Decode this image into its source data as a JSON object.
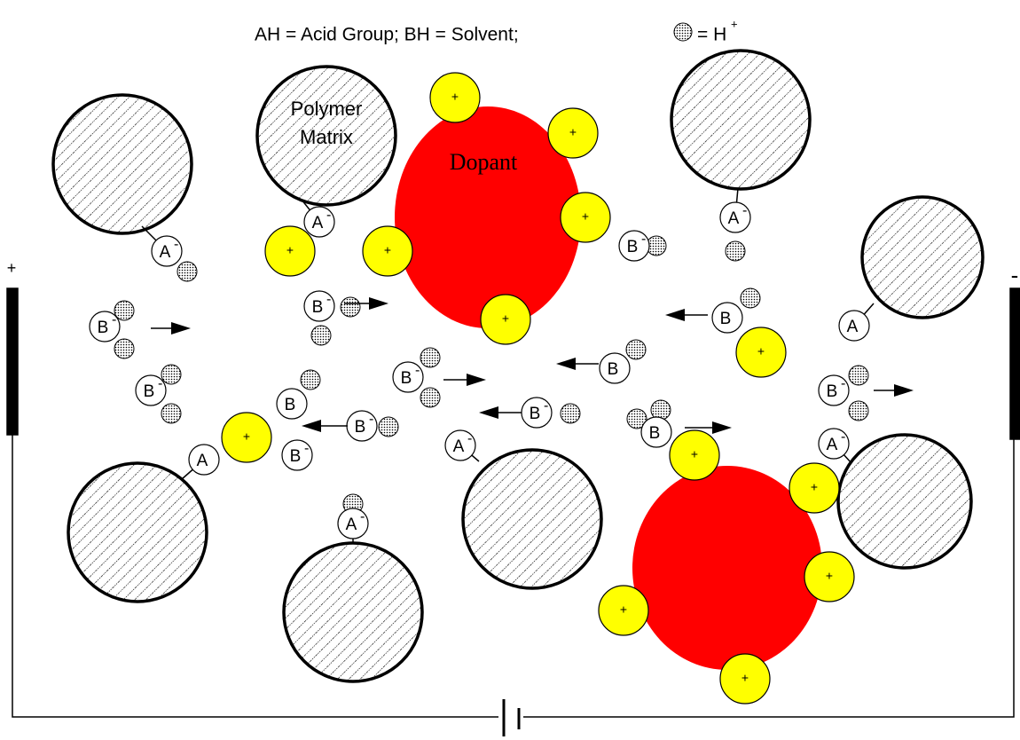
{
  "legend": {
    "text": "AH = Acid Group; BH = Solvent;",
    "proton": "= H",
    "proton_charge": "+"
  },
  "polymer_label": [
    "Polymer",
    "Matrix"
  ],
  "dopant_label": "Dopant",
  "electrodes": {
    "positive": "+",
    "negative": "-"
  },
  "dopant_protons": [
    "+",
    "+",
    "+",
    "+",
    "+",
    "+",
    "+",
    "+",
    "+",
    "+",
    "+",
    "+",
    "+"
  ],
  "ions": [
    {
      "label": "A",
      "charge": "-"
    },
    {
      "label": "A",
      "charge": "-"
    },
    {
      "label": "A",
      "charge": "-"
    },
    {
      "label": "A"
    },
    {
      "label": "A"
    },
    {
      "label": "A",
      "charge": "-"
    },
    {
      "label": "A",
      "charge": "-"
    },
    {
      "label": "A",
      "charge": "-"
    },
    {
      "label": "B",
      "charge": "-"
    },
    {
      "label": "B",
      "charge": "-"
    },
    {
      "label": "B"
    },
    {
      "label": "B",
      "charge": "-"
    },
    {
      "label": "B",
      "charge": "-"
    },
    {
      "label": "B",
      "charge": "-"
    },
    {
      "label": "B"
    },
    {
      "label": "B"
    },
    {
      "label": "B",
      "charge": "-"
    },
    {
      "label": "B",
      "charge": "-"
    },
    {
      "label": "B",
      "charge": "-"
    },
    {
      "label": "B",
      "charge": "-"
    },
    {
      "label": "B"
    }
  ]
}
